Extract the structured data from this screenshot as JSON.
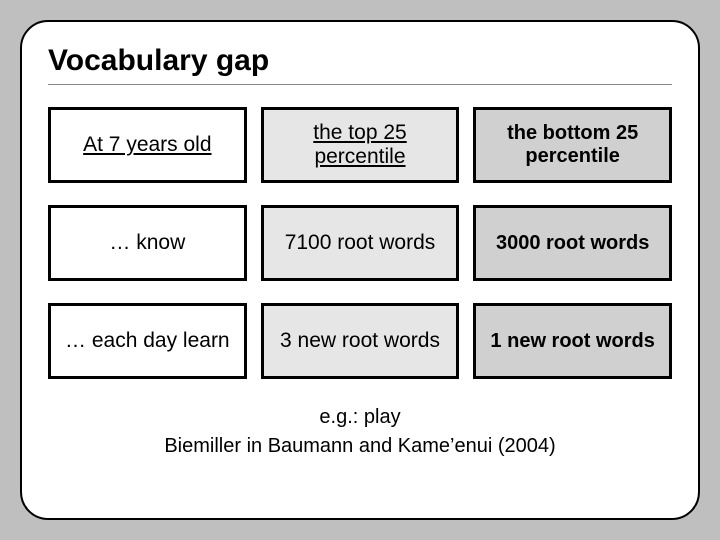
{
  "title": "Vocabulary gap",
  "grid": {
    "columns": 3,
    "rows": 3,
    "col_bg": [
      "#ffffff",
      "#e6e6e6",
      "#d0d0d0"
    ],
    "col_font": [
      "arial",
      "arial",
      "comic"
    ],
    "cell_border_color": "#000000",
    "cell_border_width": 3,
    "cells": [
      [
        {
          "text": "At 7 years old",
          "underline": true,
          "bold": false
        },
        {
          "text": "the top 25 percentile",
          "underline": true,
          "bold": false
        },
        {
          "text": "the bottom 25 percentile",
          "underline": false,
          "bold": true
        }
      ],
      [
        {
          "text": "… know",
          "underline": false,
          "bold": false
        },
        {
          "text": "7100\nroot words",
          "underline": false,
          "bold": false
        },
        {
          "text": "3000\nroot words",
          "underline": false,
          "bold": true
        }
      ],
      [
        {
          "text": "… each day learn",
          "underline": false,
          "bold": false
        },
        {
          "text": "3 new root words",
          "underline": false,
          "bold": false
        },
        {
          "text": "1 new root words",
          "underline": false,
          "bold": true
        }
      ]
    ]
  },
  "footnote_line1": "e.g.: play",
  "footnote_line2": "Biemiller in Baumann and Kame’enui (2004)",
  "colors": {
    "page_bg": "#bfbfbf",
    "slide_bg": "#ffffff",
    "slide_border": "#000000",
    "text": "#000000",
    "hr": "#888888"
  },
  "typography": {
    "title_font": "Verdana",
    "title_size_pt": 22,
    "body_font_col12": "Arial",
    "body_font_col3": "Comic Sans MS",
    "body_size_pt": 16,
    "footnote_size_pt": 15
  }
}
